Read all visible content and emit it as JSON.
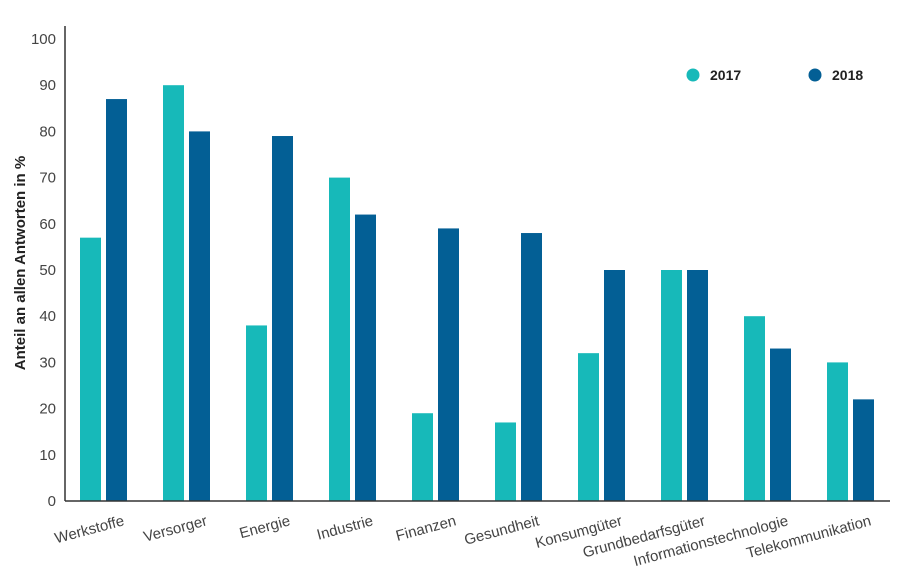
{
  "chart_data": {
    "type": "bar",
    "title": "",
    "xlabel": "",
    "ylabel": "Anteil an allen Antworten in %",
    "ylim": [
      0,
      100
    ],
    "yticks": [
      0,
      10,
      20,
      30,
      40,
      50,
      60,
      70,
      80,
      90,
      100
    ],
    "grid": false,
    "legend_position": "top-right",
    "categories": [
      "Werkstoffe",
      "Versorger",
      "Energie",
      "Industrie",
      "Finanzen",
      "Gesundheit",
      "Konsumgüter",
      "Grundbedarfsgüter",
      "Informationstechnologie",
      "Telekommunikation"
    ],
    "series": [
      {
        "name": "2017",
        "color": "#17b9b9",
        "values": [
          57,
          90,
          38,
          70,
          19,
          17,
          32,
          50,
          40,
          30
        ]
      },
      {
        "name": "2018",
        "color": "#035f95",
        "values": [
          87,
          80,
          79,
          62,
          59,
          58,
          50,
          50,
          33,
          22
        ]
      }
    ]
  }
}
